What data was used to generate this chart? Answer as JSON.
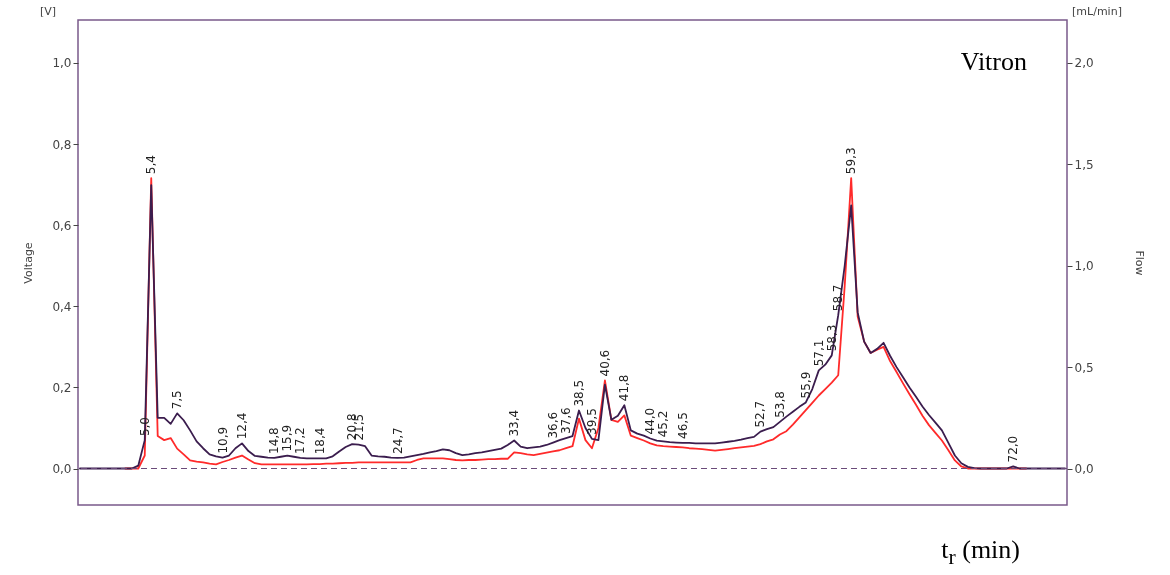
{
  "chart_data": {
    "type": "line",
    "xlabel": "t$_{r}$ (min)",
    "ylabel": "Voltage",
    "y2label": "Flow",
    "categories": [
      null,
      null,
      null,
      null,
      null,
      null,
      null,
      null,
      null,
      null,
      "5,0",
      "5,4",
      null,
      null,
      null,
      "7,5",
      null,
      null,
      null,
      null,
      null,
      null,
      "10,9",
      null,
      null,
      "12,4",
      null,
      null,
      null,
      null,
      "14,8",
      null,
      "15,9",
      null,
      "17,2",
      null,
      null,
      "18,4",
      null,
      null,
      null,
      null,
      "20,8",
      "21,5",
      null,
      null,
      null,
      null,
      null,
      "24,7",
      null,
      null,
      null,
      null,
      null,
      null,
      null,
      null,
      null,
      null,
      null,
      null,
      null,
      null,
      null,
      null,
      null,
      "33,4",
      null,
      null,
      null,
      null,
      null,
      "36,6",
      null,
      "37,6",
      null,
      "38,5",
      null,
      "39,5",
      null,
      "40,6",
      null,
      null,
      "41,8",
      null,
      null,
      null,
      "44,0",
      null,
      "45,2",
      null,
      null,
      "46,5",
      null,
      null,
      null,
      null,
      null,
      null,
      null,
      null,
      null,
      null,
      null,
      "52,7",
      null,
      null,
      "53,8",
      null,
      null,
      null,
      "55,9",
      null,
      "57,1",
      null,
      "58,3",
      "58,7",
      null,
      "59,3",
      null,
      null,
      null,
      null,
      null,
      null,
      null,
      null,
      null,
      null,
      null,
      null,
      null,
      null,
      null,
      null,
      null,
      null,
      null,
      null,
      null,
      null,
      null,
      null,
      "72,0",
      null,
      null,
      null,
      null,
      null,
      null,
      null,
      null
    ],
    "ylim": [
      -0.09,
      1.106
    ],
    "yticks": [
      {
        "value": 0,
        "label": "0,0"
      },
      {
        "value": 0.2,
        "label": "0,2"
      },
      {
        "value": 0.4,
        "label": "0,4"
      },
      {
        "value": 0.6,
        "label": "0,6"
      },
      {
        "value": 0.8,
        "label": "0,8"
      },
      {
        "value": 1.0,
        "label": "1,0"
      }
    ],
    "y2lim": [
      -0.18,
      2.212
    ],
    "y2ticks": [
      {
        "value": 0,
        "label": "0,0"
      },
      {
        "value": 0.5,
        "label": "0,5"
      },
      {
        "value": 1.0,
        "label": "1,0"
      },
      {
        "value": 1.5,
        "label": "1,5"
      },
      {
        "value": 2.0,
        "label": "2,0"
      }
    ],
    "grid": false,
    "marker": "none",
    "line_style": "solid",
    "series": [
      {
        "color": "#ff2a2a",
        "values": [
          null,
          null,
          null,
          null,
          null,
          null,
          null,
          0,
          0,
          0,
          0.032,
          0.716,
          0.08,
          0.07,
          0.075,
          0.049,
          0.035,
          0.02,
          0.017,
          0.015,
          0.012,
          0.01,
          0.016,
          0.021,
          0.027,
          0.032,
          0.022,
          0.013,
          0.01,
          0.01,
          0.01,
          0.01,
          0.01,
          0.01,
          0.01,
          0.01,
          0.011,
          0.011,
          0.012,
          0.012,
          0.013,
          0.014,
          0.014,
          0.015,
          0.015,
          0.015,
          0.015,
          0.015,
          0.015,
          0.015,
          0.015,
          0.015,
          0.021,
          0.025,
          0.025,
          0.025,
          0.025,
          0.023,
          0.021,
          0.02,
          0.021,
          0.021,
          0.022,
          0.023,
          0.023,
          0.024,
          0.024,
          0.04,
          0.038,
          0.035,
          0.033,
          0.036,
          0.039,
          0.042,
          0.045,
          0.05,
          0.055,
          0.123,
          0.07,
          0.05,
          0.1,
          0.217,
          0.12,
          0.115,
          0.131,
          0.081,
          0.075,
          0.069,
          0.062,
          0.057,
          0.055,
          0.054,
          0.053,
          0.052,
          0.05,
          0.049,
          0.048,
          0.046,
          0.044,
          0.046,
          0.048,
          0.05,
          0.052,
          0.054,
          0.056,
          0.06,
          0.067,
          0.072,
          0.084,
          0.092,
          0.108,
          0.126,
          0.144,
          0.162,
          0.18,
          0.196,
          0.212,
          0.23,
          0.45,
          0.716,
          0.375,
          0.313,
          0.285,
          0.293,
          0.3,
          0.265,
          0.238,
          0.21,
          0.183,
          0.157,
          0.13,
          0.107,
          0.088,
          0.069,
          0.045,
          0.02,
          0.005,
          0,
          0,
          0,
          0,
          0,
          0,
          0,
          0,
          0,
          0,
          null,
          null,
          null,
          null,
          null,
          null
        ]
      },
      {
        "color": "#3b1d4e",
        "values": [
          0,
          0,
          0,
          0,
          0,
          0,
          0,
          0,
          0,
          0.007,
          0.07,
          0.699,
          0.125,
          0.125,
          0.11,
          0.136,
          0.119,
          0.094,
          0.067,
          0.05,
          0.035,
          0.03,
          0.027,
          0.032,
          0.05,
          0.062,
          0.043,
          0.031,
          0.029,
          0.027,
          0.026,
          0.029,
          0.032,
          0.029,
          0.026,
          0.025,
          0.025,
          0.025,
          0.025,
          0.03,
          0.042,
          0.053,
          0.06,
          0.059,
          0.055,
          0.032,
          0.03,
          0.029,
          0.027,
          0.026,
          0.027,
          0.03,
          0.033,
          0.036,
          0.04,
          0.043,
          0.047,
          0.045,
          0.038,
          0.033,
          0.035,
          0.038,
          0.04,
          0.043,
          0.046,
          0.049,
          0.058,
          0.069,
          0.054,
          0.05,
          0.052,
          0.054,
          0.058,
          0.064,
          0.07,
          0.075,
          0.08,
          0.143,
          0.1,
          0.073,
          0.07,
          0.207,
          0.12,
          0.13,
          0.156,
          0.094,
          0.086,
          0.081,
          0.074,
          0.069,
          0.067,
          0.065,
          0.064,
          0.063,
          0.063,
          0.062,
          0.062,
          0.062,
          0.062,
          0.064,
          0.066,
          0.068,
          0.071,
          0.075,
          0.078,
          0.091,
          0.097,
          0.102,
          0.115,
          0.128,
          0.14,
          0.152,
          0.163,
          0.196,
          0.242,
          0.256,
          0.279,
          0.378,
          0.5,
          0.649,
          0.385,
          0.313,
          0.285,
          0.295,
          0.31,
          0.278,
          0.25,
          0.225,
          0.2,
          0.177,
          0.153,
          0.132,
          0.113,
          0.094,
          0.063,
          0.032,
          0.013,
          0.004,
          0.001,
          0,
          0,
          0,
          0,
          0,
          0.005,
          0,
          0,
          0,
          0,
          0,
          0,
          0,
          0
        ]
      }
    ],
    "ref_lines": [
      {
        "axis": "y",
        "value": 0,
        "color": "#6a4a7a",
        "line_style": "dashed"
      }
    ],
    "annotations": [
      "Vitron",
      "[V]",
      "[mL/min]"
    ]
  }
}
